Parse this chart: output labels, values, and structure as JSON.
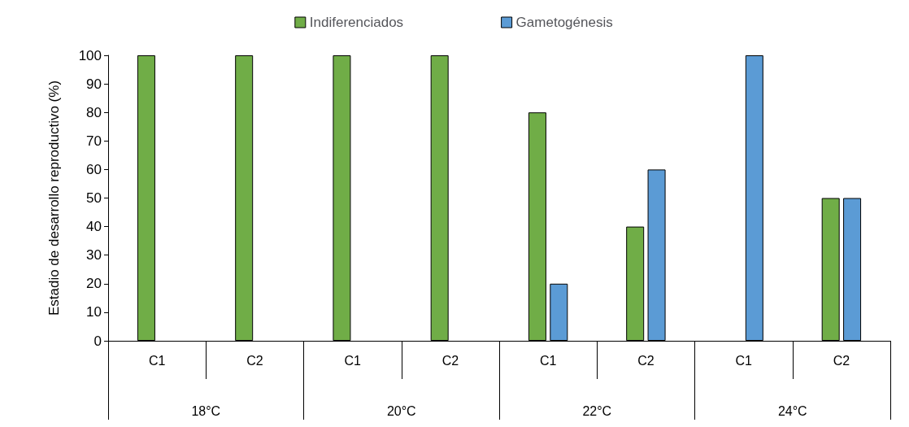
{
  "chart_data": {
    "type": "bar",
    "ylabel": "Estadio de desarrollo reproductivo (%)",
    "categories": [
      "C1",
      "C2",
      "C1",
      "C2",
      "C1",
      "C2",
      "C1",
      "C2"
    ],
    "annotations": [
      "18°C",
      "20°C",
      "22°C",
      "24°C"
    ],
    "series": [
      {
        "name": "Indiferenciados",
        "color": "#70ad47",
        "values": [
          100,
          100,
          100,
          100,
          80,
          40,
          null,
          50
        ]
      },
      {
        "name": "Gametogénesis",
        "color": "#5b9bd5",
        "values": [
          null,
          null,
          null,
          null,
          20,
          60,
          100,
          50
        ]
      }
    ],
    "ylim": [
      0,
      100
    ],
    "yticks": [
      0,
      10,
      20,
      30,
      40,
      50,
      60,
      70,
      80,
      90,
      100
    ],
    "grid": false,
    "legend": "top"
  }
}
